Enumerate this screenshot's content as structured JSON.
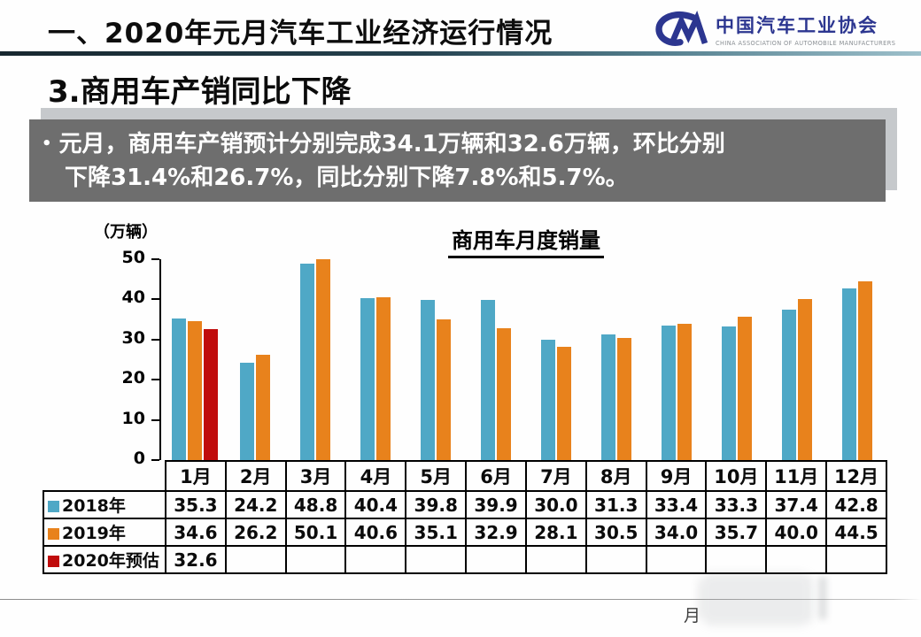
{
  "header": {
    "title": "一、2020年元月汽车工业经济运行情况",
    "logo": {
      "icon": "caam-cm-monogram",
      "org_cn": "中国汽车工业协会",
      "org_en": "CHINA ASSOCIATION OF AUTOMOBILE MANUFACTURERS",
      "brand_color": "#2c3690"
    }
  },
  "section": {
    "title": "3.商用车产销同比下降"
  },
  "highlight": {
    "bullet": "•",
    "line1": "元月，商用车产销预计分别完成34.1万辆和32.6万辆，环比分别",
    "line2": "下降31.4%和26.7%，同比分别下降7.8%和5.7%。",
    "box_color": "#6e6e6e",
    "text_color": "#ffffff"
  },
  "chart_data": {
    "type": "bar",
    "title": "商用车月度销量",
    "unit_label": "（万辆）",
    "categories": [
      "1月",
      "2月",
      "3月",
      "4月",
      "5月",
      "6月",
      "7月",
      "8月",
      "9月",
      "10月",
      "11月",
      "12月"
    ],
    "series": [
      {
        "name": "2018年",
        "color": "#4FA8C6",
        "values": [
          35.3,
          24.2,
          48.8,
          40.4,
          39.8,
          39.9,
          30.0,
          31.3,
          33.4,
          33.3,
          37.4,
          42.8
        ]
      },
      {
        "name": "2019年",
        "color": "#E8821C",
        "values": [
          34.6,
          26.2,
          50.1,
          40.6,
          35.1,
          32.9,
          28.1,
          30.5,
          34.0,
          35.7,
          40.0,
          44.5
        ]
      },
      {
        "name": "2020年预估",
        "color": "#C00C0C",
        "values": [
          32.6,
          null,
          null,
          null,
          null,
          null,
          null,
          null,
          null,
          null,
          null,
          null
        ]
      }
    ],
    "ylim": [
      0,
      50
    ],
    "yticks": [
      0,
      10,
      20,
      30,
      40,
      50
    ],
    "grid": false,
    "legend_position": "table-left-column",
    "value_format": "one-decimal"
  },
  "footer": {
    "visible_text": "月"
  }
}
